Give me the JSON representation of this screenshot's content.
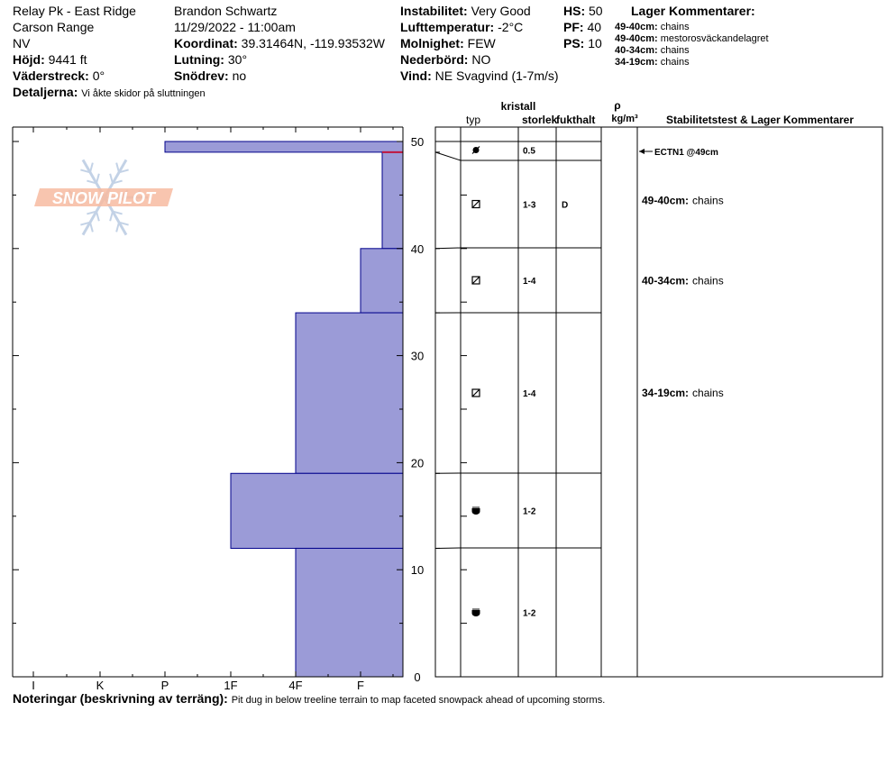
{
  "header": {
    "col1": [
      {
        "label": "",
        "value": "Relay Pk - East Ridge"
      },
      {
        "label": "",
        "value": "Carson Range"
      },
      {
        "label": "",
        "value": "NV"
      },
      {
        "label": "Höjd:",
        "value": "9441 ft"
      },
      {
        "label": "Väderstreck:",
        "value": "0°"
      }
    ],
    "col2": [
      {
        "label": "",
        "value": "Brandon Schwartz"
      },
      {
        "label": "",
        "value": "11/29/2022 - 11:00am"
      },
      {
        "label": "Koordinat:",
        "value": "39.31464N, -119.93532W"
      },
      {
        "label": "Lutning:",
        "value": "30°"
      },
      {
        "label": "Snödrev:",
        "value": "no"
      }
    ],
    "col3": [
      {
        "label": "Instabilitet:",
        "value": "Very Good"
      },
      {
        "label": "Lufttemperatur:",
        "value": "-2°C"
      },
      {
        "label": "Molnighet:",
        "value": "FEW"
      },
      {
        "label": "Nederbörd:",
        "value": "NO"
      },
      {
        "label": "Vind:",
        "value": "NE Svagvind (1-7m/s)"
      }
    ],
    "col4": [
      {
        "label": "HS:",
        "value": "50"
      },
      {
        "label": "PF:",
        "value": "40"
      },
      {
        "label": "PS:",
        "value": "10"
      }
    ],
    "details_label": "Detaljerna:",
    "details_value": "Vi åkte skidor på sluttningen",
    "layer_comments_title": "Lager Kommentarer:",
    "layer_comments": [
      {
        "range": "49-40cm:",
        "text": "chains"
      },
      {
        "range": "49-40cm:",
        "text": "mestorosväckandelagret"
      },
      {
        "range": "40-34cm:",
        "text": "chains"
      },
      {
        "range": "34-19cm:",
        "text": "chains"
      }
    ]
  },
  "logo_text": "SNOW PILOT",
  "column_headers": {
    "typ": "typ",
    "kristall": "kristall",
    "storlek": "storlek",
    "fukthalt": "fukthalt",
    "rho": "ρ",
    "density_unit": "kg/m³",
    "stability": "Stabilitetstest & Lager Kommentarer"
  },
  "footer": {
    "label": "Noteringar (beskrivning av terräng):",
    "text": "Pit dug in below treeline terrain to map faceted snowpack ahead of upcoming storms."
  },
  "colors": {
    "hardness_fill": "#9b9bd7",
    "hardness_stroke": "#00008b",
    "weak_layer": "#c0143c",
    "logo_orange": "#f4a582",
    "logo_blue": "#b0c4de"
  },
  "chart_data": {
    "type": "snow-profile",
    "depth_unit": "cm",
    "ylim": [
      0,
      50
    ],
    "y_ticks": [
      "0",
      "10",
      "20",
      "30",
      "40",
      "50"
    ],
    "hardness_ticks": [
      "I",
      "K",
      "P",
      "1F",
      "4F",
      "F"
    ],
    "hardness_layers": [
      {
        "top": 50,
        "bottom": 49,
        "hardness": "P"
      },
      {
        "top": 49,
        "bottom": 40,
        "hardness": "F+"
      },
      {
        "top": 40,
        "bottom": 34,
        "hardness": "F"
      },
      {
        "top": 34,
        "bottom": 19,
        "hardness": "4F"
      },
      {
        "top": 19,
        "bottom": 12,
        "hardness": "1F"
      },
      {
        "top": 12,
        "bottom": 0,
        "hardness": "4F"
      }
    ],
    "weak_layer_depth": 49,
    "layer_boundaries": [
      50,
      49,
      40,
      34,
      19,
      12,
      0
    ],
    "grain_layers": [
      {
        "top": 50,
        "bottom": 49,
        "grain": "rounding-facet",
        "size": "0.5",
        "moisture": ""
      },
      {
        "top": 49,
        "bottom": 40,
        "grain": "facet",
        "size": "1-3",
        "moisture": "D"
      },
      {
        "top": 40,
        "bottom": 34,
        "grain": "facet",
        "size": "1-4",
        "moisture": ""
      },
      {
        "top": 34,
        "bottom": 19,
        "grain": "facet",
        "size": "1-4",
        "moisture": ""
      },
      {
        "top": 19,
        "bottom": 12,
        "grain": "depth-hoar",
        "size": "1-2",
        "moisture": ""
      },
      {
        "top": 12,
        "bottom": 0,
        "grain": "depth-hoar",
        "size": "1-2",
        "moisture": ""
      }
    ],
    "stability_tests": [
      {
        "depth": 49,
        "label": "ECTN1 @49cm"
      }
    ],
    "stability_comments": [
      {
        "depth": 44.5,
        "range": "49-40cm:",
        "text": "chains"
      },
      {
        "depth": 37,
        "range": "40-34cm:",
        "text": "chains"
      },
      {
        "depth": 26.5,
        "range": "34-19cm:",
        "text": "chains"
      }
    ]
  }
}
